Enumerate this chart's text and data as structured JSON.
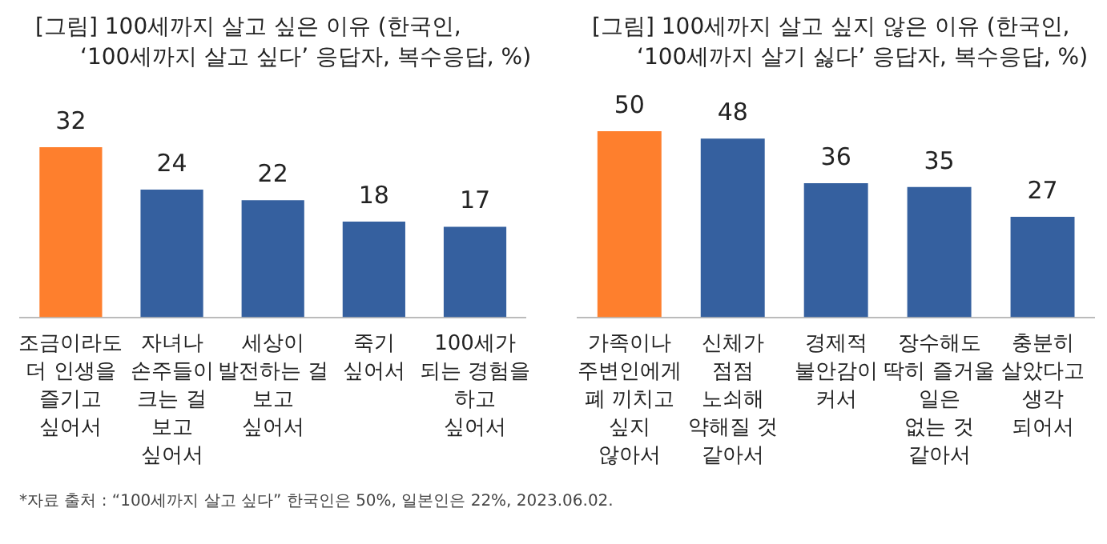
{
  "chart_data": [
    {
      "type": "bar",
      "title": "[그림] 100세까지 살고 싶은 이유 (한국인,\n‘100세까지 살고 싶다’ 응답자, 복수응답, %)",
      "categories": [
        "조금이라도\n더 인생을\n즐기고\n싶어서",
        "자녀나\n손주들이\n크는 걸\n보고\n싶어서",
        "세상이\n발전하는 걸\n보고\n싶어서",
        "죽기\n싶어서",
        "100세가\n되는 경험을\n하고\n싶어서"
      ],
      "values": [
        32,
        24,
        22,
        18,
        17
      ],
      "colors": [
        "#fe7f2d",
        "#35609f",
        "#35609f",
        "#35609f",
        "#35609f"
      ],
      "data_labels": true,
      "tick_labels": "x",
      "grid": false,
      "legend": false,
      "annotations": [
        "*자료 출처 : “100세까지 살고 싶다” 한국인은 50%, 일본인은 22%, 2023.06.02."
      ]
    },
    {
      "type": "bar",
      "title": "[그림] 100세까지 살고 싶지 않은 이유 (한국인,\n‘100세까지 살기 싫다’ 응답자, 복수응답, %)",
      "categories": [
        "가족이나\n주변인에게\n폐 끼치고\n싶지\n않아서",
        "신체가\n점점\n노쇠해\n약해질 것\n같아서",
        "경제적\n불안감이\n커서",
        "장수해도\n딱히 즐거울\n일은\n없는 것\n같아서",
        "충분히\n살았다고\n생각\n되어서"
      ],
      "values": [
        50,
        48,
        36,
        35,
        27
      ],
      "colors": [
        "#fe7f2d",
        "#35609f",
        "#35609f",
        "#35609f",
        "#35609f"
      ],
      "data_labels": true,
      "tick_labels": "x",
      "grid": false,
      "legend": false
    }
  ]
}
